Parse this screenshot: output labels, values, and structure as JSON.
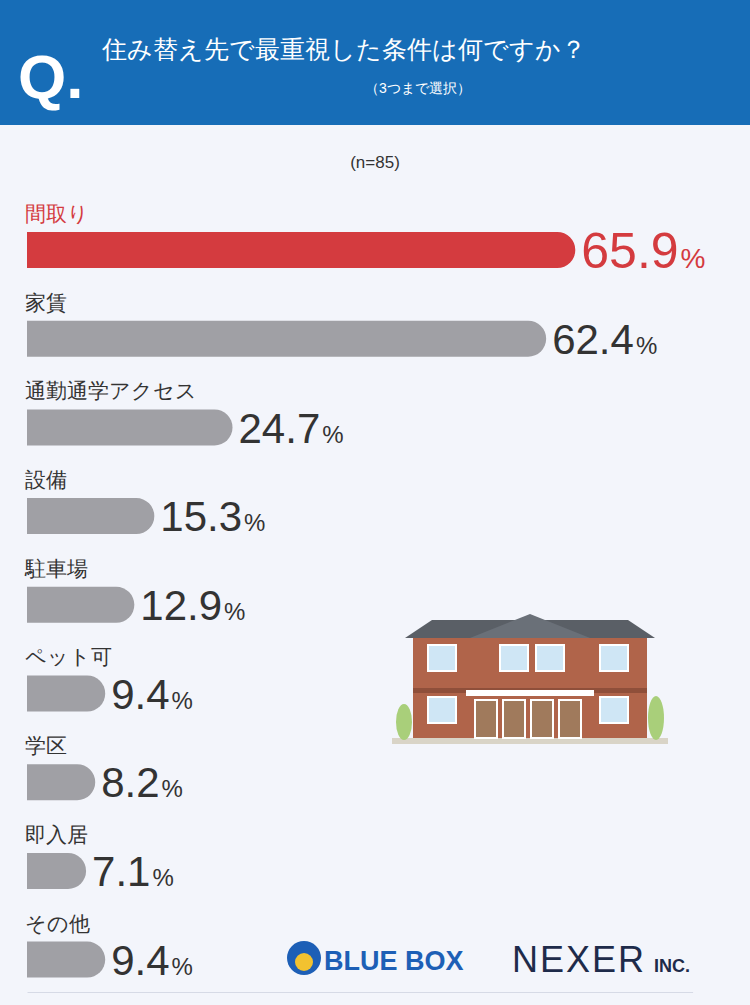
{
  "chart_data": {
    "type": "bar",
    "orientation": "horizontal",
    "title": "住み替え先で最重視した条件は何ですか？",
    "subtitle": "（3つまで選択）",
    "annotations": [
      "Q.",
      "(n=85)",
      "BLUE BOX",
      "NEXER INC."
    ],
    "categories": [
      "間取り",
      "家賃",
      "通勤通学アクセス",
      "設備",
      "駐車場",
      "ペット可",
      "学区",
      "即入居",
      "その他"
    ],
    "values": [
      65.9,
      62.4,
      24.7,
      15.3,
      12.9,
      9.4,
      8.2,
      7.1,
      9.4
    ],
    "value_labels": [
      "65.9%",
      "62.4%",
      "24.7%",
      "15.3%",
      "12.9%",
      "9.4%",
      "8.2%",
      "7.1%",
      "9.4%"
    ],
    "colors": [
      "#d43b3f",
      "#a0a0a5",
      "#a0a0a5",
      "#a0a0a5",
      "#a0a0a5",
      "#a0a0a5",
      "#a0a0a5",
      "#a0a0a5",
      "#a0a0a5"
    ],
    "xlim": [
      0,
      80
    ],
    "xticks": [],
    "tick_labels": false,
    "data_labels": true,
    "grid": false
  }
}
